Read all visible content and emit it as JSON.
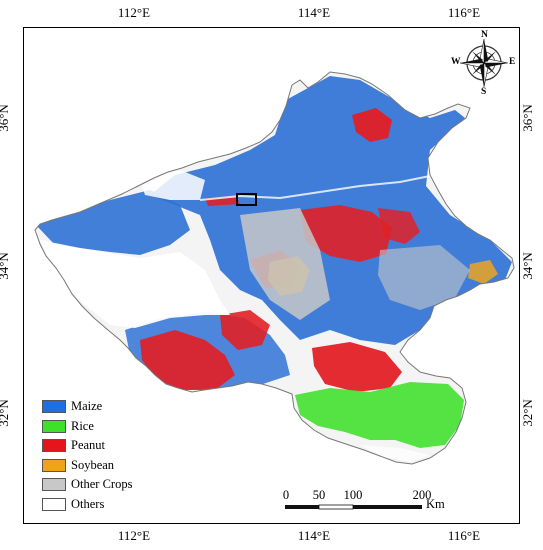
{
  "map": {
    "top_ticks": [
      "112°E",
      "114°E",
      "116°E"
    ],
    "bottom_ticks": [
      "112°E",
      "114°E",
      "116°E"
    ],
    "left_ticks": [
      "36°N",
      "34°N",
      "32°N"
    ],
    "right_ticks": [
      "36°N",
      "34°N",
      "32°N"
    ],
    "compass": {
      "n": "N",
      "s": "S",
      "e": "E",
      "w": "W"
    },
    "legend": [
      {
        "label": "Maize",
        "color": "#1f6fe0"
      },
      {
        "label": "Rice",
        "color": "#3fe02a"
      },
      {
        "label": "Peanut",
        "color": "#e8141c"
      },
      {
        "label": "Soybean",
        "color": "#f2a21a"
      },
      {
        "label": "Other Crops",
        "color": "#c8c8c8"
      },
      {
        "label": "Others",
        "color": "#ffffff"
      }
    ],
    "scale": {
      "labels": [
        "0",
        "50",
        "100",
        "200"
      ],
      "unit": "Km"
    },
    "colors": {
      "maize": "#2f72d6",
      "rice": "#4ce23a",
      "peanut": "#e22026",
      "soybean": "#e3a32a",
      "other_crops": "#c7c7c7",
      "box": "#000000"
    }
  }
}
